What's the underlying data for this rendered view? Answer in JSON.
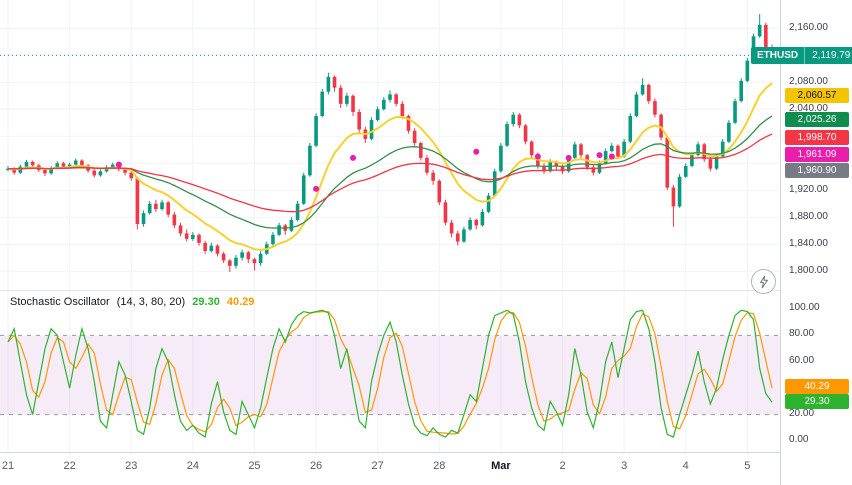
{
  "symbol_badge": {
    "symbol": "ETHUSD",
    "price_text": "2,119.79",
    "bg": "#089981"
  },
  "indicator": {
    "title": "Stochastic Oscillator",
    "params": "(14, 3, 80, 20)",
    "k_value": "29.30",
    "d_value": "40.29",
    "k_color": "#2db32d",
    "d_color": "#ff9800"
  },
  "price_axis": {
    "ticks": [
      {
        "text": "2,160.00",
        "price": 2160
      },
      {
        "text": "2,080.00",
        "price": 2080
      },
      {
        "text": "2,040.00",
        "price": 2040
      },
      {
        "text": "1,920.00",
        "price": 1920
      },
      {
        "text": "1,880.00",
        "price": 1880
      },
      {
        "text": "1,840.00",
        "price": 1840
      },
      {
        "text": "1,800.00",
        "price": 1800
      }
    ],
    "badges": [
      {
        "text": "2,060.57",
        "price": 2060.57,
        "bg": "#f5c400",
        "fg": "#131722"
      },
      {
        "text": "2,025.26",
        "price": 2025.26,
        "bg": "#118c4f",
        "fg": "#ffffff"
      },
      {
        "text": "1,998.70",
        "price": 1998.7,
        "bg": "#f23645",
        "fg": "#ffffff"
      },
      {
        "text": "1,961.09",
        "price": 1961.09,
        "bg": "#e91eaa",
        "fg": "#ffffff",
        "dy": -8
      },
      {
        "text": "1,960.90",
        "price": 1960.9,
        "bg": "#787b86",
        "fg": "#ffffff",
        "dy": 8
      }
    ]
  },
  "stoch_axis": {
    "ticks": [
      {
        "text": "100.00",
        "value": 100
      },
      {
        "text": "80.00",
        "value": 80
      },
      {
        "text": "60.00",
        "value": 60
      },
      {
        "text": "20.00",
        "value": 20
      },
      {
        "text": "0.00",
        "value": 0
      }
    ],
    "badges": [
      {
        "text": "40.29",
        "value": 40.29,
        "bg": "#ff9800",
        "fg": "#ffffff"
      },
      {
        "text": "29.30",
        "value": 29.3,
        "bg": "#2db32d",
        "fg": "#ffffff"
      }
    ]
  },
  "time_axis": {
    "labels": [
      {
        "text": "21",
        "i": 0
      },
      {
        "text": "22",
        "i": 10
      },
      {
        "text": "23",
        "i": 20
      },
      {
        "text": "24",
        "i": 30
      },
      {
        "text": "25",
        "i": 40
      },
      {
        "text": "26",
        "i": 50
      },
      {
        "text": "27",
        "i": 60
      },
      {
        "text": "28",
        "i": 70
      },
      {
        "text": "Mar",
        "i": 80,
        "bold": true
      },
      {
        "text": "2",
        "i": 90
      },
      {
        "text": "3",
        "i": 100
      },
      {
        "text": "4",
        "i": 110
      },
      {
        "text": "5",
        "i": 120
      }
    ]
  },
  "chart_data": [
    {
      "type": "candlestick",
      "symbol": "ETHUSD",
      "last_price": 2119.79,
      "ylim": [
        1790,
        2190
      ],
      "grid_step": 40,
      "up_color": "#089981",
      "down_color": "#f23645",
      "grid_color": "#f0f3fa",
      "marker_color": "#e91eaa",
      "overlays": [
        {
          "name": "ma-fast-yellow",
          "period": 12,
          "color": "#f8d12f",
          "width": 2,
          "last_label": "2,060.57"
        },
        {
          "name": "ma-mid-green",
          "period": 30,
          "color": "#338f4c",
          "width": 1.3,
          "last_label": "2,025.26"
        },
        {
          "name": "ma-slow-red",
          "period": 55,
          "color": "#f23645",
          "width": 1.3,
          "last_label": "1,998.70"
        }
      ],
      "markers": [
        [
          18,
          1958
        ],
        [
          50,
          1922
        ],
        [
          56,
          1968
        ],
        [
          76,
          1977
        ],
        [
          86,
          1970
        ],
        [
          91,
          1968
        ],
        [
          96,
          1972
        ],
        [
          98,
          1970
        ]
      ],
      "candles": [
        [
          1950,
          1956,
          1948,
          1952
        ],
        [
          1952,
          1954,
          1943,
          1946
        ],
        [
          1946,
          1958,
          1944,
          1955
        ],
        [
          1955,
          1965,
          1953,
          1962
        ],
        [
          1962,
          1964,
          1954,
          1957
        ],
        [
          1957,
          1959,
          1947,
          1950
        ],
        [
          1950,
          1952,
          1941,
          1945
        ],
        [
          1945,
          1956,
          1943,
          1953
        ],
        [
          1953,
          1963,
          1951,
          1960
        ],
        [
          1960,
          1962,
          1952,
          1955
        ],
        [
          1955,
          1961,
          1953,
          1958
        ],
        [
          1958,
          1967,
          1956,
          1964
        ],
        [
          1964,
          1966,
          1954,
          1957
        ],
        [
          1957,
          1959,
          1946,
          1949
        ],
        [
          1949,
          1951,
          1939,
          1942
        ],
        [
          1942,
          1951,
          1940,
          1948
        ],
        [
          1948,
          1957,
          1946,
          1954
        ],
        [
          1954,
          1961,
          1952,
          1958
        ],
        [
          1958,
          1960,
          1948,
          1951
        ],
        [
          1951,
          1953,
          1942,
          1946
        ],
        [
          1946,
          1948,
          1934,
          1938
        ],
        [
          1938,
          1940,
          1862,
          1870
        ],
        [
          1870,
          1890,
          1866,
          1886
        ],
        [
          1886,
          1904,
          1884,
          1900
        ],
        [
          1900,
          1906,
          1888,
          1892
        ],
        [
          1892,
          1906,
          1890,
          1902
        ],
        [
          1902,
          1904,
          1880,
          1884
        ],
        [
          1884,
          1888,
          1864,
          1868
        ],
        [
          1868,
          1872,
          1852,
          1856
        ],
        [
          1856,
          1862,
          1844,
          1848
        ],
        [
          1848,
          1858,
          1845,
          1854
        ],
        [
          1854,
          1856,
          1838,
          1842
        ],
        [
          1842,
          1845,
          1826,
          1830
        ],
        [
          1830,
          1842,
          1828,
          1838
        ],
        [
          1838,
          1840,
          1822,
          1826
        ],
        [
          1826,
          1829,
          1812,
          1816
        ],
        [
          1816,
          1818,
          1799,
          1808
        ],
        [
          1808,
          1824,
          1804,
          1820
        ],
        [
          1820,
          1832,
          1816,
          1828
        ],
        [
          1828,
          1830,
          1812,
          1818
        ],
        [
          1818,
          1820,
          1801,
          1812
        ],
        [
          1812,
          1830,
          1808,
          1826
        ],
        [
          1826,
          1844,
          1824,
          1840
        ],
        [
          1840,
          1858,
          1838,
          1854
        ],
        [
          1854,
          1872,
          1852,
          1868
        ],
        [
          1868,
          1870,
          1854,
          1860
        ],
        [
          1860,
          1880,
          1858,
          1876
        ],
        [
          1876,
          1904,
          1874,
          1900
        ],
        [
          1900,
          1946,
          1898,
          1942
        ],
        [
          1942,
          1990,
          1940,
          1986
        ],
        [
          1986,
          2034,
          1984,
          2030
        ],
        [
          2030,
          2070,
          2028,
          2066
        ],
        [
          2066,
          2094,
          2062,
          2088
        ],
        [
          2088,
          2090,
          2066,
          2072
        ],
        [
          2072,
          2076,
          2042,
          2048
        ],
        [
          2048,
          2064,
          2044,
          2060
        ],
        [
          2060,
          2062,
          2030,
          2036
        ],
        [
          2036,
          2040,
          2004,
          2010
        ],
        [
          2010,
          2014,
          1990,
          1996
        ],
        [
          1996,
          2028,
          1994,
          2024
        ],
        [
          2024,
          2044,
          2022,
          2040
        ],
        [
          2040,
          2058,
          2038,
          2054
        ],
        [
          2054,
          2068,
          2050,
          2062
        ],
        [
          2062,
          2064,
          2044,
          2048
        ],
        [
          2048,
          2052,
          2026,
          2030
        ],
        [
          2030,
          2032,
          2004,
          2008
        ],
        [
          2008,
          2012,
          1986,
          1990
        ],
        [
          1990,
          1992,
          1964,
          1968
        ],
        [
          1968,
          1972,
          1942,
          1946
        ],
        [
          1946,
          1950,
          1928,
          1934
        ],
        [
          1934,
          1936,
          1898,
          1902
        ],
        [
          1902,
          1906,
          1868,
          1872
        ],
        [
          1872,
          1876,
          1850,
          1856
        ],
        [
          1856,
          1860,
          1838,
          1844
        ],
        [
          1844,
          1866,
          1842,
          1862
        ],
        [
          1862,
          1880,
          1860,
          1876
        ],
        [
          1876,
          1878,
          1862,
          1868
        ],
        [
          1868,
          1892,
          1866,
          1888
        ],
        [
          1888,
          1916,
          1886,
          1912
        ],
        [
          1912,
          1952,
          1910,
          1948
        ],
        [
          1948,
          1990,
          1946,
          1986
        ],
        [
          1986,
          2022,
          1984,
          2018
        ],
        [
          2018,
          2036,
          2014,
          2032
        ],
        [
          2032,
          2034,
          2012,
          2016
        ],
        [
          2016,
          2018,
          1988,
          1992
        ],
        [
          1992,
          1994,
          1968,
          1972
        ],
        [
          1972,
          1976,
          1952,
          1956
        ],
        [
          1956,
          1960,
          1944,
          1948
        ],
        [
          1948,
          1966,
          1946,
          1962
        ],
        [
          1962,
          1964,
          1950,
          1956
        ],
        [
          1956,
          1958,
          1944,
          1948
        ],
        [
          1948,
          1972,
          1946,
          1968
        ],
        [
          1968,
          1992,
          1966,
          1988
        ],
        [
          1988,
          1990,
          1968,
          1972
        ],
        [
          1972,
          1974,
          1950,
          1954
        ],
        [
          1954,
          1958,
          1942,
          1946
        ],
        [
          1946,
          1964,
          1944,
          1960
        ],
        [
          1960,
          1982,
          1958,
          1978
        ],
        [
          1978,
          1990,
          1976,
          1986
        ],
        [
          1986,
          1988,
          1966,
          1970
        ],
        [
          1970,
          1996,
          1968,
          1992
        ],
        [
          1992,
          2034,
          1990,
          2030
        ],
        [
          2030,
          2066,
          2028,
          2062
        ],
        [
          2062,
          2086,
          2060,
          2076
        ],
        [
          2076,
          2078,
          2048,
          2052
        ],
        [
          2052,
          2056,
          2028,
          2032
        ],
        [
          2032,
          2034,
          1994,
          1998
        ],
        [
          1998,
          2000,
          1920,
          1924
        ],
        [
          1924,
          1928,
          1866,
          1896
        ],
        [
          1896,
          1944,
          1894,
          1940
        ],
        [
          1940,
          1960,
          1938,
          1956
        ],
        [
          1956,
          1976,
          1954,
          1972
        ],
        [
          1972,
          1992,
          1970,
          1988
        ],
        [
          1988,
          1990,
          1962,
          1966
        ],
        [
          1966,
          1970,
          1948,
          1952
        ],
        [
          1952,
          1974,
          1950,
          1970
        ],
        [
          1970,
          1996,
          1968,
          1992
        ],
        [
          1992,
          2024,
          1990,
          2020
        ],
        [
          2020,
          2056,
          2018,
          2052
        ],
        [
          2052,
          2086,
          2050,
          2082
        ],
        [
          2082,
          2116,
          2080,
          2112
        ],
        [
          2112,
          2152,
          2110,
          2148
        ],
        [
          2148,
          2181,
          2146,
          2165
        ],
        [
          2165,
          2168,
          2124,
          2130
        ],
        [
          2130,
          2136,
          2112,
          2119.79
        ]
      ]
    },
    {
      "type": "line",
      "title": "Stochastic Oscillator (14, 3, 80, 20)",
      "ylim": [
        0,
        100
      ],
      "upper_band": 80,
      "lower_band": 20,
      "band_color": "#9c27b0",
      "band_line_color": "#9598a1",
      "d_smoothing": 3,
      "k_values": [
        75,
        85,
        60,
        35,
        20,
        45,
        70,
        85,
        80,
        60,
        40,
        65,
        85,
        70,
        45,
        15,
        10,
        35,
        60,
        50,
        30,
        8,
        5,
        25,
        55,
        70,
        60,
        35,
        15,
        8,
        12,
        6,
        3,
        28,
        45,
        22,
        8,
        5,
        30,
        20,
        10,
        25,
        48,
        70,
        85,
        75,
        88,
        95,
        98,
        97,
        98,
        99,
        97,
        80,
        55,
        70,
        40,
        15,
        10,
        45,
        65,
        80,
        90,
        75,
        50,
        28,
        12,
        6,
        4,
        10,
        5,
        3,
        8,
        6,
        20,
        35,
        30,
        55,
        80,
        95,
        97,
        99,
        96,
        75,
        45,
        25,
        12,
        8,
        30,
        22,
        12,
        35,
        70,
        50,
        22,
        10,
        30,
        60,
        75,
        48,
        70,
        92,
        98,
        99,
        85,
        60,
        25,
        5,
        3,
        20,
        35,
        50,
        68,
        45,
        28,
        40,
        62,
        80,
        95,
        99,
        98,
        92,
        55,
        36,
        29.3
      ]
    }
  ]
}
